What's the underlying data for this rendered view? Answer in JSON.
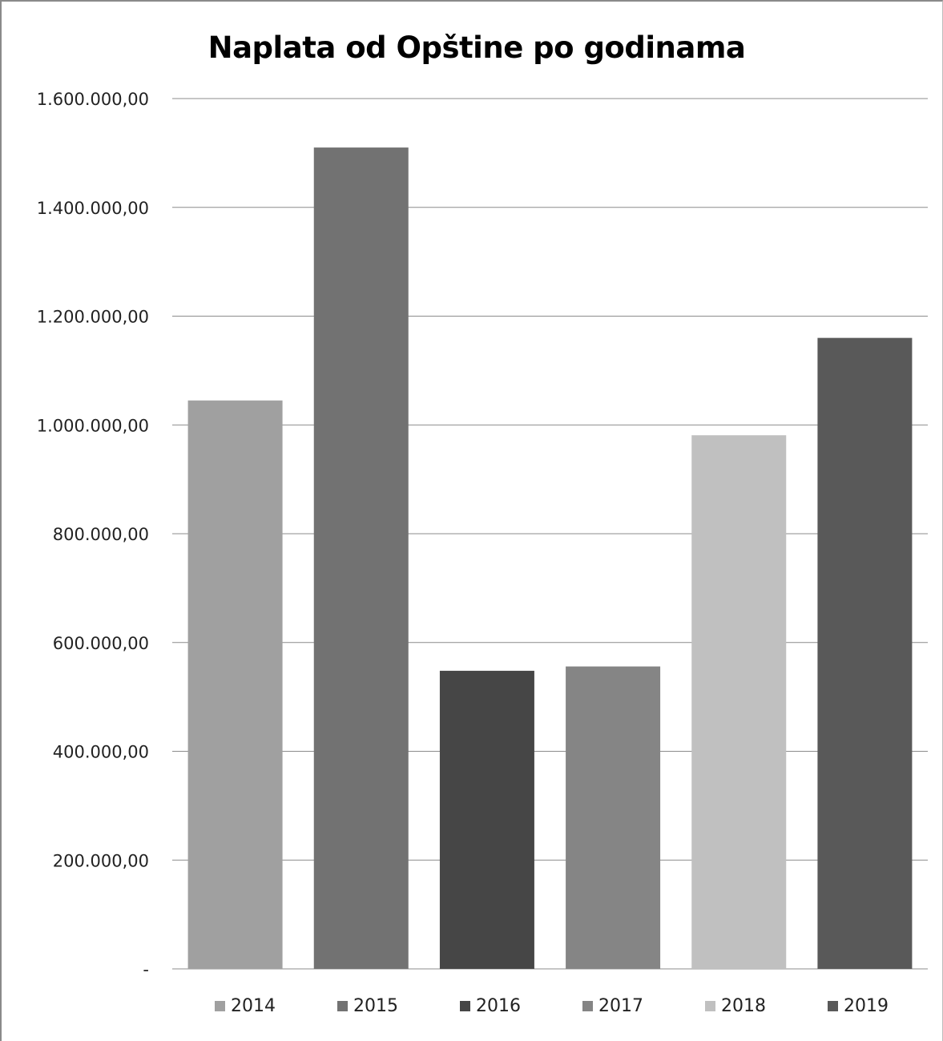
{
  "chart_data": {
    "type": "bar",
    "title": "Naplata od Opštine po godinama",
    "xlabel": "",
    "ylabel": "",
    "ylim": [
      0,
      1600000
    ],
    "y_ticks": [
      {
        "value": 0,
        "label": "-"
      },
      {
        "value": 200000,
        "label": "200.000,00"
      },
      {
        "value": 400000,
        "label": "400.000,00"
      },
      {
        "value": 600000,
        "label": "600.000,00"
      },
      {
        "value": 800000,
        "label": "800.000,00"
      },
      {
        "value": 1000000,
        "label": "1.000.000,00"
      },
      {
        "value": 1200000,
        "label": "1.200.000,00"
      },
      {
        "value": 1400000,
        "label": "1.400.000,00"
      },
      {
        "value": 1600000,
        "label": "1.600.000,00"
      }
    ],
    "grid": true,
    "legend_position": "bottom",
    "series": [
      {
        "name": "2014",
        "value": 1045000,
        "color": "#a0a0a0"
      },
      {
        "name": "2015",
        "value": 1510000,
        "color": "#727272"
      },
      {
        "name": "2016",
        "value": 548000,
        "color": "#464646"
      },
      {
        "name": "2017",
        "value": 556000,
        "color": "#858585"
      },
      {
        "name": "2018",
        "value": 981000,
        "color": "#c0c0c0"
      },
      {
        "name": "2019",
        "value": 1160000,
        "color": "#595959"
      }
    ]
  }
}
